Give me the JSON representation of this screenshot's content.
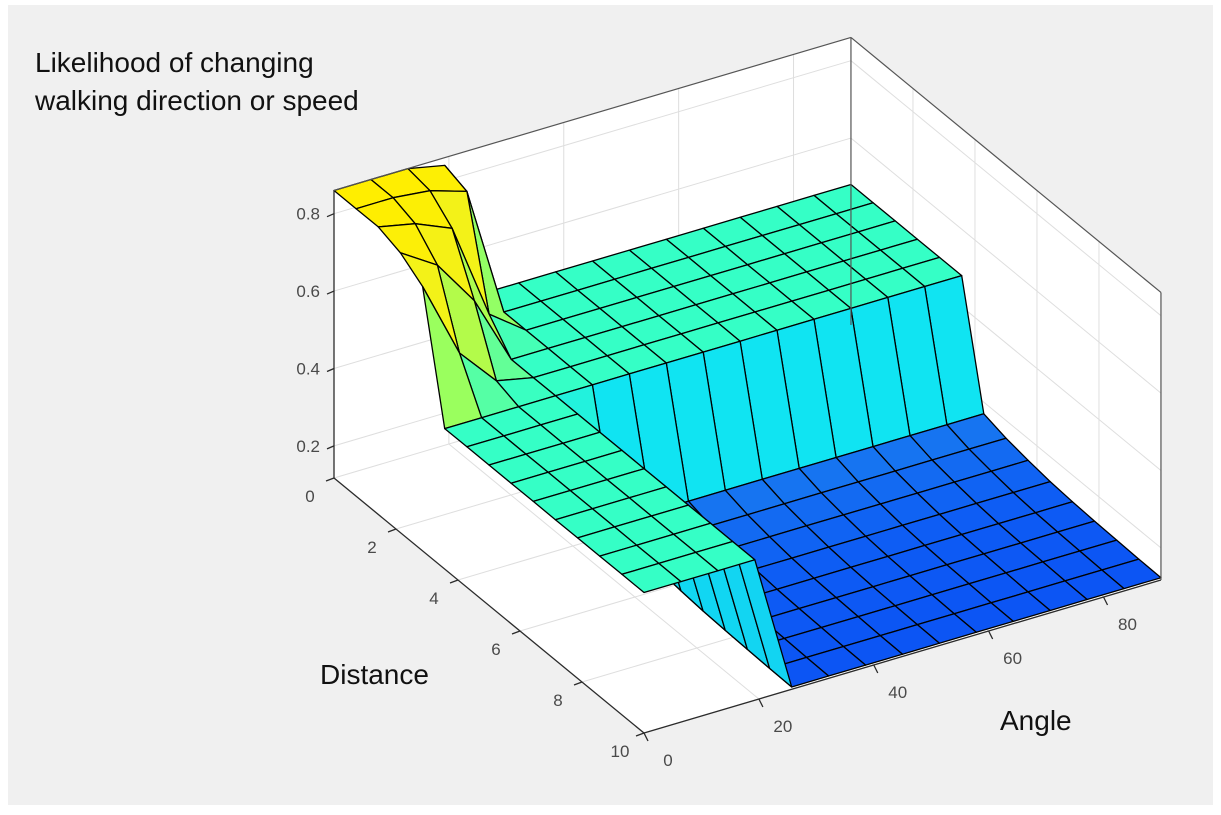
{
  "chart_data": {
    "type": "surface",
    "title": "",
    "zlabel_lines": [
      "Likelihood of changing",
      "walking direction or speed"
    ],
    "xlabel": "Angle",
    "ylabel": "Distance",
    "x_name": "Angle",
    "y_name": "Distance",
    "xlim": [
      0,
      90
    ],
    "ylim": [
      0,
      10
    ],
    "zlim": [
      0.117,
      0.86
    ],
    "x_ticks": [
      0,
      20,
      40,
      60,
      80
    ],
    "x_tick_labels": [
      "0",
      "20",
      "40",
      "60",
      "80"
    ],
    "y_ticks": [
      0,
      2,
      4,
      6,
      8,
      10
    ],
    "y_tick_labels": [
      "0",
      "2",
      "4",
      "6",
      "8",
      "10"
    ],
    "z_ticks": [
      0.2,
      0.4,
      0.6,
      0.8
    ],
    "z_tick_labels": [
      "0.2",
      "0.4",
      "0.6",
      "0.8"
    ],
    "grid": true,
    "x_samples": 15,
    "y_samples": 15,
    "z_rows_by_distance": [
      [
        0.86,
        0.86,
        0.86,
        0.84,
        0.48,
        0.48,
        0.48,
        0.48,
        0.48,
        0.48,
        0.48,
        0.48,
        0.48,
        0.48,
        0.48
      ],
      [
        0.86,
        0.86,
        0.85,
        0.82,
        0.48,
        0.48,
        0.48,
        0.48,
        0.48,
        0.48,
        0.48,
        0.48,
        0.48,
        0.48,
        0.48
      ],
      [
        0.86,
        0.84,
        0.8,
        0.55,
        0.48,
        0.48,
        0.48,
        0.48,
        0.48,
        0.48,
        0.48,
        0.48,
        0.48,
        0.48,
        0.48
      ],
      [
        0.84,
        0.78,
        0.66,
        0.48,
        0.48,
        0.48,
        0.48,
        0.48,
        0.48,
        0.48,
        0.48,
        0.48,
        0.48,
        0.48,
        0.48
      ],
      [
        0.8,
        0.6,
        0.5,
        0.48,
        0.48,
        0.48,
        0.48,
        0.48,
        0.48,
        0.48,
        0.48,
        0.48,
        0.48,
        0.48,
        0.48
      ],
      [
        0.48,
        0.48,
        0.48,
        0.48,
        0.48,
        0.48,
        0.48,
        0.48,
        0.48,
        0.48,
        0.48,
        0.48,
        0.48,
        0.48,
        0.48
      ],
      [
        0.48,
        0.48,
        0.48,
        0.48,
        0.17,
        0.17,
        0.17,
        0.17,
        0.17,
        0.17,
        0.17,
        0.17,
        0.17,
        0.17,
        0.17
      ],
      [
        0.48,
        0.48,
        0.48,
        0.48,
        0.154,
        0.154,
        0.154,
        0.154,
        0.154,
        0.154,
        0.154,
        0.154,
        0.154,
        0.154,
        0.154
      ],
      [
        0.48,
        0.48,
        0.48,
        0.48,
        0.144,
        0.144,
        0.144,
        0.144,
        0.144,
        0.144,
        0.144,
        0.144,
        0.144,
        0.144,
        0.144
      ],
      [
        0.48,
        0.48,
        0.48,
        0.48,
        0.136,
        0.136,
        0.136,
        0.136,
        0.136,
        0.136,
        0.136,
        0.136,
        0.136,
        0.136,
        0.136
      ],
      [
        0.48,
        0.48,
        0.48,
        0.48,
        0.131,
        0.131,
        0.131,
        0.131,
        0.131,
        0.131,
        0.131,
        0.131,
        0.131,
        0.131,
        0.131
      ],
      [
        0.48,
        0.48,
        0.48,
        0.48,
        0.128,
        0.128,
        0.128,
        0.128,
        0.128,
        0.128,
        0.128,
        0.128,
        0.128,
        0.128,
        0.128
      ],
      [
        0.48,
        0.48,
        0.48,
        0.48,
        0.126,
        0.126,
        0.126,
        0.126,
        0.126,
        0.126,
        0.126,
        0.126,
        0.126,
        0.126,
        0.126
      ],
      [
        0.48,
        0.48,
        0.48,
        0.48,
        0.124,
        0.124,
        0.124,
        0.124,
        0.124,
        0.124,
        0.124,
        0.124,
        0.124,
        0.124,
        0.124
      ],
      [
        0.48,
        0.48,
        0.48,
        0.48,
        0.123,
        0.123,
        0.123,
        0.123,
        0.123,
        0.123,
        0.123,
        0.123,
        0.123,
        0.123,
        0.123
      ]
    ],
    "colormap": [
      {
        "t": 0.0,
        "color": "#0a50f5"
      },
      {
        "t": 0.08,
        "color": "#1a80f0"
      },
      {
        "t": 0.28,
        "color": "#10e4f2"
      },
      {
        "t": 0.486,
        "color": "#33ffc8"
      },
      {
        "t": 0.64,
        "color": "#9cff5c"
      },
      {
        "t": 0.85,
        "color": "#f2f21a"
      },
      {
        "t": 1.0,
        "color": "#ffee00"
      }
    ],
    "edge_color": "#000000",
    "legend": "none"
  }
}
